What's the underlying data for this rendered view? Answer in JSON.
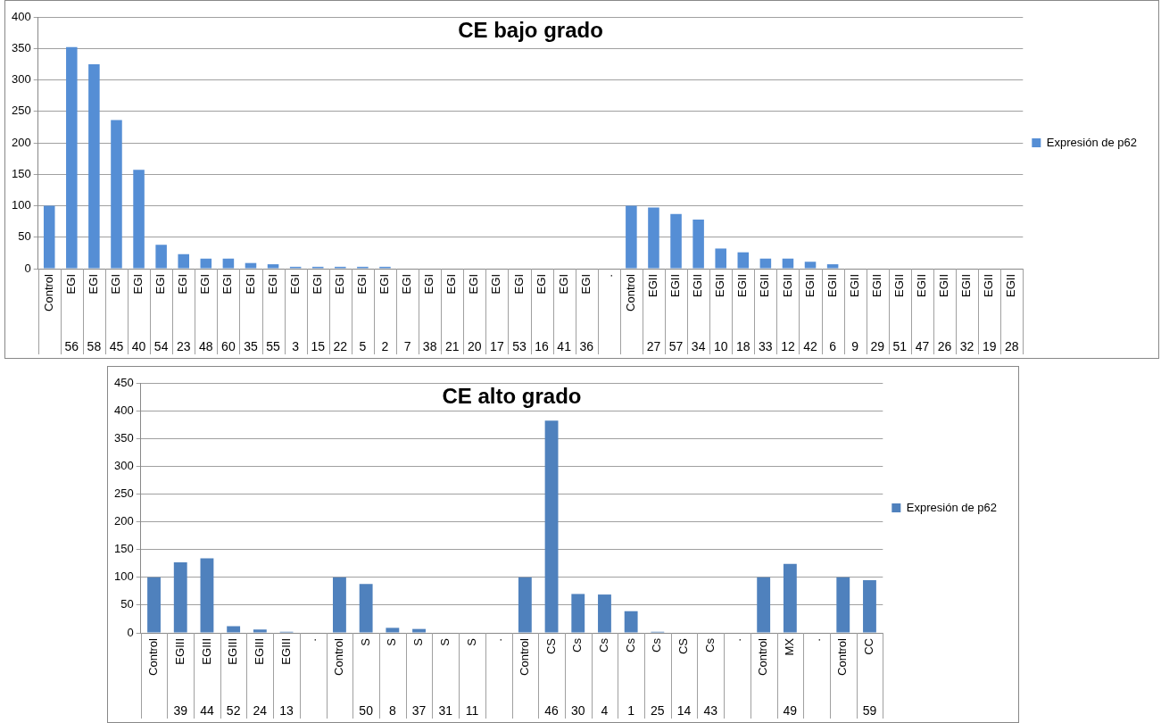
{
  "chart_data": [
    {
      "type": "bar",
      "title": "CE bajo grado",
      "categories": [
        "Control",
        "EGI\n56",
        "EGI\n58",
        "EGI\n45",
        "EGI\n40",
        "EGI\n54",
        "EGI\n23",
        "EGI\n48",
        "EGI\n60",
        "EGI\n35",
        "EGI\n55",
        "EGI\n3",
        "EGI\n15",
        "EGI\n22",
        "EGI\n5",
        "EGI\n2",
        "EGI\n7",
        "EGI\n38",
        "EGI\n21",
        "EGI\n20",
        "EGI\n17",
        "EGI\n53",
        "EGI\n16",
        "EGI\n41",
        "EGI\n36",
        ".",
        "Control",
        "EGII\n27",
        "EGII\n57",
        "EGII\n34",
        "EGII\n10",
        "EGII\n18",
        "EGII\n33",
        "EGII\n12",
        "EGII\n42",
        "EGII\n6",
        "EGII\n9",
        "EGII\n29",
        "EGII\n51",
        "EGII\n47",
        "EGII\n26",
        "EGII\n32",
        "EGII\n19",
        "EGII\n28"
      ],
      "series": [
        {
          "name": "Expresión de p62",
          "color": "#558ed5",
          "values": [
            100,
            352,
            325,
            236,
            157,
            38,
            23,
            16,
            16,
            9,
            7,
            3,
            3,
            3,
            3,
            3,
            0,
            0,
            0,
            0,
            0,
            0,
            0,
            0,
            0,
            null,
            100,
            97,
            87,
            78,
            32,
            26,
            16,
            16,
            11,
            7,
            0,
            0,
            0,
            0,
            0,
            0,
            0,
            0
          ]
        }
      ],
      "ylim": [
        0,
        400
      ],
      "yticks": [
        0,
        50,
        100,
        150,
        200,
        250,
        300,
        350,
        400
      ],
      "grid": "y",
      "legend": "right"
    },
    {
      "type": "bar",
      "title": "CE alto grado",
      "categories": [
        "Control",
        "EGIII\n39",
        "EGIII\n44",
        "EGIII\n52",
        "EGIII\n24",
        "EGIII\n13",
        ".",
        "Control",
        "S\n50",
        "S\n8",
        "S\n37",
        "S\n31",
        "S\n11",
        ".",
        "Control",
        "CS\n46",
        "Cs\n30",
        "Cs\n4",
        "Cs\n1",
        "Cs\n25",
        "CS\n14",
        "Cs\n43",
        ".",
        "Control",
        "MX\n49",
        ".",
        "Control",
        "CC\n59"
      ],
      "series": [
        {
          "name": "Expresión de p62",
          "color": "#4f81bd",
          "values": [
            100,
            127,
            134,
            12,
            6,
            2,
            null,
            100,
            88,
            9,
            7,
            0,
            0,
            null,
            100,
            382,
            70,
            69,
            39,
            2,
            0,
            0,
            null,
            100,
            124,
            null,
            100,
            95
          ]
        }
      ],
      "ylim": [
        0,
        450
      ],
      "yticks": [
        0,
        50,
        100,
        150,
        200,
        250,
        300,
        350,
        400,
        450
      ],
      "grid": "y",
      "legend": "right"
    }
  ]
}
